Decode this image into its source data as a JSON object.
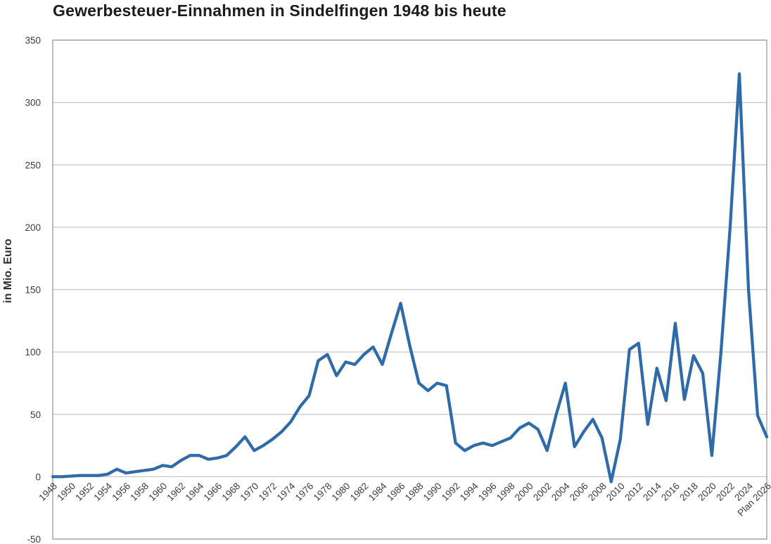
{
  "header": {
    "title": "Gewerbesteuer-Einnahmen in Sindelfingen 1948 bis heute"
  },
  "chart_data": {
    "type": "line",
    "title": "Gewerbesteuer-Einnahmen in Sindelfingen 1948 bis heute",
    "xlabel": "",
    "ylabel": "in Mio. Euro",
    "ylim": [
      -50,
      350
    ],
    "yticks": [
      350,
      300,
      250,
      200,
      150,
      100,
      50,
      0,
      -50
    ],
    "grid": true,
    "legend": false,
    "x_tick_years": [
      1948,
      1950,
      1952,
      1954,
      1956,
      1958,
      1960,
      1962,
      1964,
      1966,
      1968,
      1970,
      1972,
      1974,
      1976,
      1978,
      1980,
      1982,
      1984,
      1986,
      1988,
      1990,
      1992,
      1994,
      1996,
      1998,
      2000,
      2002,
      2004,
      2006,
      2008,
      2010,
      2012,
      2014,
      2016,
      2018,
      2020,
      2022,
      2024,
      2026
    ],
    "x_tick_labels": [
      "1948",
      "1950",
      "1952",
      "1954",
      "1956",
      "1958",
      "1960",
      "1962",
      "1964",
      "1966",
      "1968",
      "1970",
      "1972",
      "1974",
      "1976",
      "1978",
      "1980",
      "1982",
      "1984",
      "1986",
      "1988",
      "1990",
      "1992",
      "1994",
      "1996",
      "1998",
      "2000",
      "2002",
      "2004",
      "2006",
      "2008",
      "2010",
      "2012",
      "2014",
      "2016",
      "2018",
      "2020",
      "2022",
      "2024",
      "Plan 2026"
    ],
    "years": [
      1948,
      1949,
      1950,
      1951,
      1952,
      1953,
      1954,
      1955,
      1956,
      1957,
      1958,
      1959,
      1960,
      1961,
      1962,
      1963,
      1964,
      1965,
      1966,
      1967,
      1968,
      1969,
      1970,
      1971,
      1972,
      1973,
      1974,
      1975,
      1976,
      1977,
      1978,
      1979,
      1980,
      1981,
      1982,
      1983,
      1984,
      1985,
      1986,
      1987,
      1988,
      1989,
      1990,
      1991,
      1992,
      1993,
      1994,
      1995,
      1996,
      1997,
      1998,
      1999,
      2000,
      2001,
      2002,
      2003,
      2004,
      2005,
      2006,
      2007,
      2008,
      2009,
      2010,
      2011,
      2012,
      2013,
      2014,
      2015,
      2016,
      2017,
      2018,
      2019,
      2020,
      2021,
      2022,
      2023,
      2024,
      2025,
      2026
    ],
    "series": [
      {
        "name": "Gewerbesteuer-Einnahmen in Mio. Euro",
        "color": "#2f6ba8",
        "values": [
          0,
          0,
          0.5,
          1,
          1,
          1,
          2,
          6,
          3,
          4,
          5,
          6,
          9,
          8,
          13,
          17,
          17,
          14,
          15,
          17,
          24,
          32,
          21,
          25,
          30,
          36,
          44,
          56,
          65,
          93,
          98,
          81,
          92,
          90,
          98,
          104,
          90,
          115,
          139,
          105,
          75,
          69,
          75,
          73,
          27,
          21,
          25,
          27,
          25,
          28,
          31,
          39,
          43,
          38,
          21,
          50,
          75,
          24,
          36,
          46,
          31,
          -4,
          30,
          102,
          107,
          42,
          87,
          61,
          123,
          62,
          97,
          83,
          17,
          100,
          200,
          323,
          150,
          49,
          32
        ]
      }
    ]
  },
  "style": {
    "line_color": "#2f6ba8",
    "grid_color": "#c7c7c7",
    "plot_border_color": "#a3a3a3",
    "tick_text_color": "#3c3c3c",
    "title_color": "#1c1c1c",
    "background_color": "#ffffff"
  }
}
